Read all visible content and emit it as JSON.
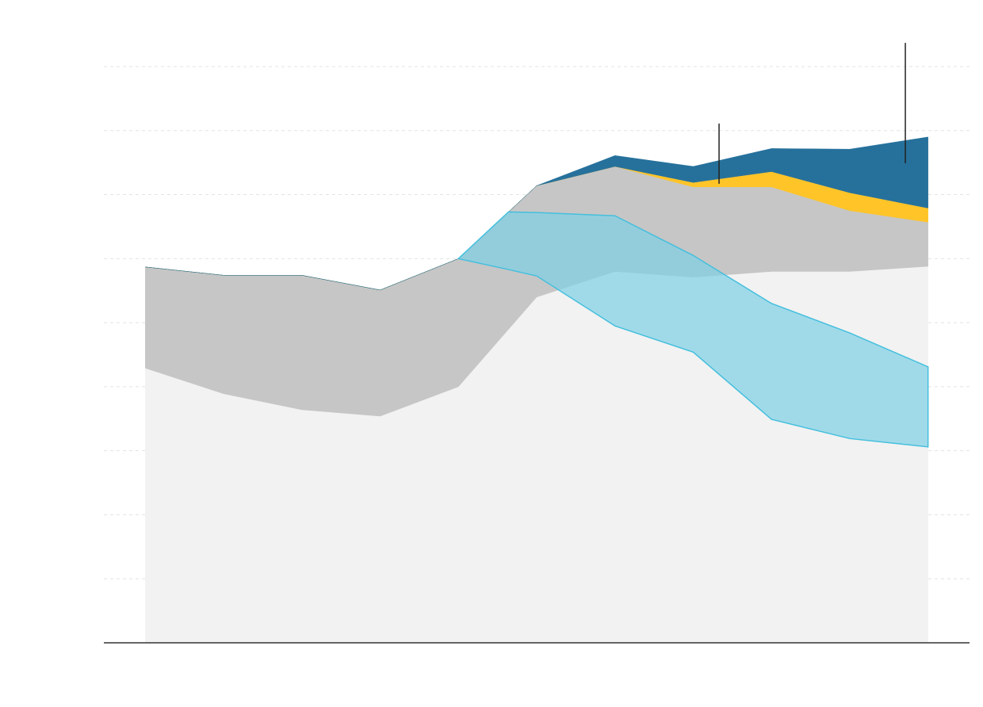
{
  "chart_data": {
    "type": "stacked-area",
    "x": [
      0,
      1,
      2,
      3,
      4,
      5,
      6,
      7,
      8,
      9,
      10
    ],
    "xlim": [
      -0.53,
      10.53
    ],
    "ylim": [
      0,
      9
    ],
    "yticks": [
      0,
      1,
      2,
      3,
      4,
      5,
      6,
      7,
      8,
      9
    ],
    "grid": true,
    "series": [
      {
        "color": "#f2f2f2",
        "values": [
          4.29,
          3.89,
          3.64,
          3.54,
          4.0,
          5.4,
          5.8,
          5.71,
          5.8,
          5.8,
          5.88
        ]
      },
      {
        "color": "#c6c6c6",
        "values": [
          1.58,
          1.85,
          2.1,
          1.97,
          2.0,
          1.74,
          1.64,
          1.41,
          1.32,
          0.95,
          0.69
        ]
      },
      {
        "color": "#ffc428",
        "values": [
          0,
          0,
          0,
          0,
          0,
          0,
          0,
          0.07,
          0.24,
          0.28,
          0.22
        ]
      },
      {
        "color": "#26719c",
        "values": [
          0,
          0,
          0,
          0,
          0,
          0,
          0.17,
          0.25,
          0.36,
          0.68,
          1.11
        ]
      }
    ],
    "band": {
      "color": "#7dd0e6",
      "line_color": "#45bfdd",
      "x": [
        4,
        4.64,
        5,
        6,
        7,
        8,
        9,
        10
      ],
      "high": [
        6.0,
        6.73,
        6.72,
        6.67,
        6.05,
        5.3,
        4.84,
        4.31
      ],
      "low": [
        6.0,
        5.83,
        5.73,
        4.95,
        4.54,
        3.49,
        3.19,
        3.06
      ]
    },
    "annotation_lines": [
      {
        "x": 7.33,
        "range": [
          7.17,
          8.11
        ]
      },
      {
        "x": 9.71,
        "range": [
          7.49,
          9.37
        ]
      }
    ]
  }
}
